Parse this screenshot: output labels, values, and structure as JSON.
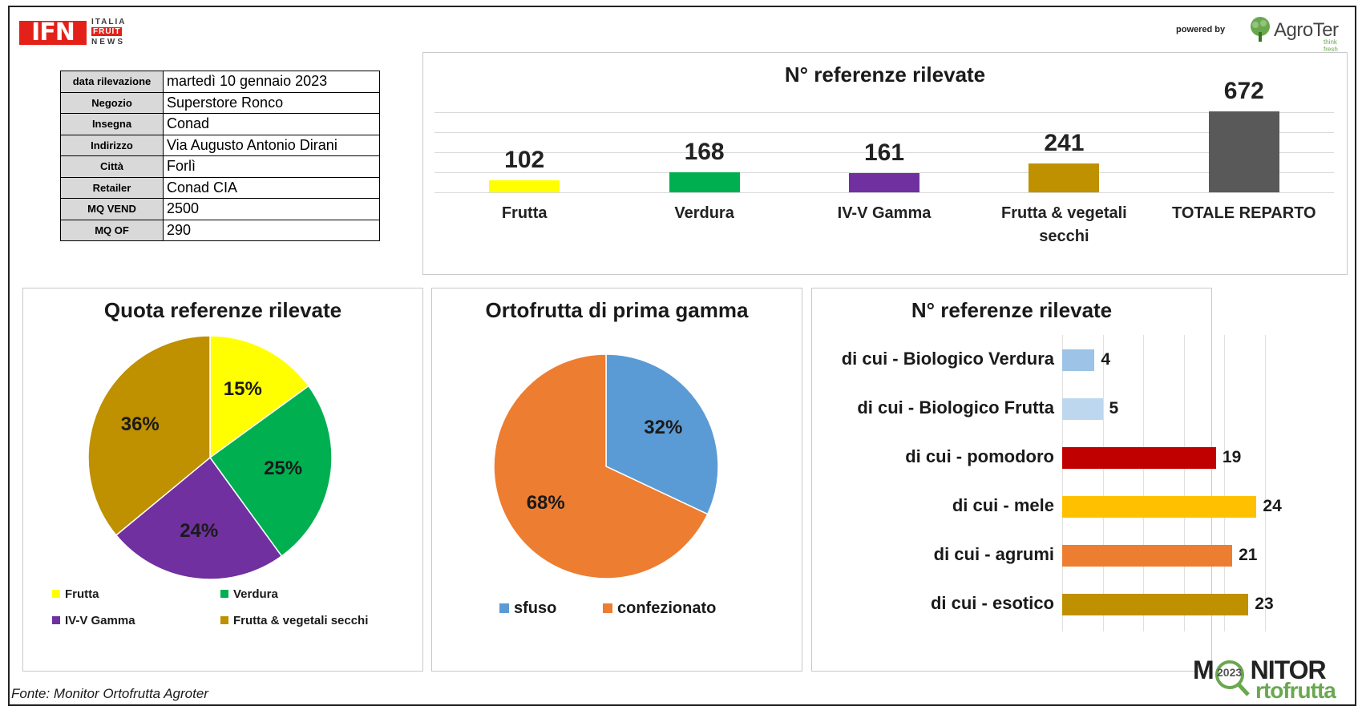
{
  "header": {
    "ifn_logo": {
      "main": "IFN",
      "line1": "ITALIA",
      "line2": "FRUIT",
      "line3": "NEWS"
    },
    "powered_by": "powered by",
    "agroter": {
      "name": "AgroTer",
      "tagline": "think fresh"
    }
  },
  "info_table": [
    {
      "label": "data rilevazione",
      "value": "martedì 10 gennaio 2023"
    },
    {
      "label": "Negozio",
      "value": "Superstore Ronco"
    },
    {
      "label": "Insegna",
      "value": "Conad"
    },
    {
      "label": "Indirizzo",
      "value": "Via Augusto Antonio Dirani"
    },
    {
      "label": "Città",
      "value": "Forlì"
    },
    {
      "label": "Retailer",
      "value": "Conad CIA"
    },
    {
      "label": "MQ VEND",
      "value": "2500"
    },
    {
      "label": "MQ OF",
      "value": "290"
    }
  ],
  "chart_data": [
    {
      "type": "bar",
      "title": "N° referenze rilevate",
      "categories": [
        "Frutta",
        "Verdura",
        "IV-V Gamma",
        "Frutta & vegetali secchi",
        "TOTALE REPARTO"
      ],
      "values": [
        102,
        168,
        161,
        241,
        672
      ],
      "colors": [
        "#ffff00",
        "#00b050",
        "#7030a0",
        "#bf9000",
        "#595959"
      ],
      "ylim": [
        0,
        800
      ],
      "grid": true,
      "data_labels": [
        "102",
        "168",
        "161",
        "241",
        "672"
      ]
    },
    {
      "type": "pie",
      "title": "Quota referenze rilevate",
      "labels": [
        "Frutta",
        "Verdura",
        "IV-V Gamma",
        "Frutta & vegetali secchi"
      ],
      "values": [
        15,
        25,
        24,
        36
      ],
      "data_labels": [
        "15%",
        "25%",
        "24%",
        "36%"
      ],
      "colors": [
        "#ffff00",
        "#00b050",
        "#7030a0",
        "#bf9000"
      ],
      "legend": "bottom"
    },
    {
      "type": "pie",
      "title": "Ortofrutta di prima gamma",
      "labels": [
        "sfuso",
        "confezionato"
      ],
      "values": [
        32,
        68
      ],
      "data_labels": [
        "32%",
        "68%"
      ],
      "colors": [
        "#5b9bd5",
        "#ed7d31"
      ],
      "legend": "bottom"
    },
    {
      "type": "bar",
      "orientation": "horizontal",
      "title": "N° referenze rilevate",
      "categories": [
        "di cui -  Biologico Verdura",
        "di cui -  Biologico Frutta",
        "di cui - pomodoro",
        "di cui - mele",
        "di cui - agrumi",
        "di cui - esotico"
      ],
      "values": [
        4,
        5,
        19,
        24,
        21,
        23
      ],
      "colors": [
        "#9dc3e6",
        "#bdd7ee",
        "#c00000",
        "#ffc000",
        "#ed7d31",
        "#bf9000"
      ],
      "xlim": [
        0,
        25
      ],
      "grid": true
    }
  ],
  "footer": {
    "source": "Fonte: Monitor Ortofrutta Agroter",
    "monitor_logo": {
      "top": "MONITOR",
      "year": "2023",
      "bottom": "rtofrutta"
    }
  }
}
